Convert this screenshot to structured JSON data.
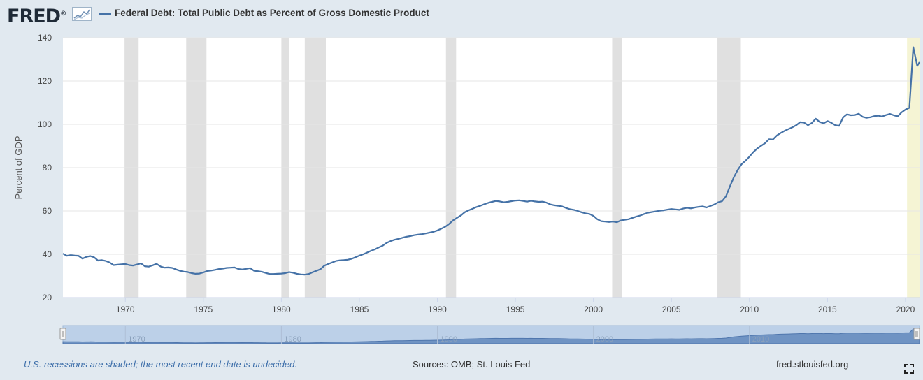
{
  "header": {
    "logo_text": "FRED",
    "logo_mark": "®",
    "graph_icon": "line-graph-icon"
  },
  "chart_data": {
    "type": "line",
    "title": "Federal Debt: Total Public Debt as Percent of Gross Domestic Product",
    "ylabel": "Percent of GDP",
    "xlabel": "",
    "xlim": [
      1966.0,
      2020.9
    ],
    "ylim": [
      20,
      140
    ],
    "yticks": [
      20,
      40,
      60,
      80,
      100,
      120,
      140
    ],
    "xticks": [
      1970,
      1975,
      1980,
      1985,
      1990,
      1995,
      2000,
      2005,
      2010,
      2015,
      2020
    ],
    "grid": true,
    "series": [
      {
        "name": "Federal Debt: Total Public Debt as Percent of Gross Domestic Product",
        "color": "#4572a7",
        "points": [
          [
            1966.0,
            40.3
          ],
          [
            1966.25,
            39.3
          ],
          [
            1966.5,
            39.6
          ],
          [
            1966.75,
            39.4
          ],
          [
            1967.0,
            39.3
          ],
          [
            1967.25,
            38.0
          ],
          [
            1967.5,
            38.8
          ],
          [
            1967.75,
            39.2
          ],
          [
            1968.0,
            38.6
          ],
          [
            1968.25,
            37.1
          ],
          [
            1968.5,
            37.3
          ],
          [
            1968.75,
            36.9
          ],
          [
            1969.0,
            36.2
          ],
          [
            1969.25,
            35.0
          ],
          [
            1969.5,
            35.2
          ],
          [
            1969.75,
            35.4
          ],
          [
            1970.0,
            35.5
          ],
          [
            1970.25,
            35.0
          ],
          [
            1970.5,
            34.8
          ],
          [
            1970.75,
            35.3
          ],
          [
            1971.0,
            35.8
          ],
          [
            1971.25,
            34.5
          ],
          [
            1971.5,
            34.3
          ],
          [
            1971.75,
            34.9
          ],
          [
            1972.0,
            35.6
          ],
          [
            1972.25,
            34.4
          ],
          [
            1972.5,
            33.8
          ],
          [
            1972.75,
            33.9
          ],
          [
            1973.0,
            33.7
          ],
          [
            1973.25,
            33.0
          ],
          [
            1973.5,
            32.4
          ],
          [
            1973.75,
            32.0
          ],
          [
            1974.0,
            31.8
          ],
          [
            1974.25,
            31.3
          ],
          [
            1974.5,
            31.0
          ],
          [
            1974.75,
            31.1
          ],
          [
            1975.0,
            31.6
          ],
          [
            1975.25,
            32.3
          ],
          [
            1975.5,
            32.5
          ],
          [
            1975.75,
            32.8
          ],
          [
            1976.0,
            33.2
          ],
          [
            1976.25,
            33.4
          ],
          [
            1976.5,
            33.7
          ],
          [
            1976.75,
            33.8
          ],
          [
            1977.0,
            33.9
          ],
          [
            1977.25,
            33.2
          ],
          [
            1977.5,
            33.0
          ],
          [
            1977.75,
            33.3
          ],
          [
            1978.0,
            33.6
          ],
          [
            1978.25,
            32.4
          ],
          [
            1978.5,
            32.2
          ],
          [
            1978.75,
            31.9
          ],
          [
            1979.0,
            31.4
          ],
          [
            1979.25,
            30.9
          ],
          [
            1979.5,
            30.9
          ],
          [
            1979.75,
            31.0
          ],
          [
            1980.0,
            31.1
          ],
          [
            1980.25,
            31.3
          ],
          [
            1980.5,
            31.8
          ],
          [
            1980.75,
            31.5
          ],
          [
            1981.0,
            31.0
          ],
          [
            1981.25,
            30.7
          ],
          [
            1981.5,
            30.6
          ],
          [
            1981.75,
            30.9
          ],
          [
            1982.0,
            31.7
          ],
          [
            1982.25,
            32.4
          ],
          [
            1982.5,
            33.1
          ],
          [
            1982.75,
            34.7
          ],
          [
            1983.0,
            35.5
          ],
          [
            1983.25,
            36.2
          ],
          [
            1983.5,
            36.9
          ],
          [
            1983.75,
            37.2
          ],
          [
            1984.0,
            37.3
          ],
          [
            1984.25,
            37.5
          ],
          [
            1984.5,
            37.9
          ],
          [
            1984.75,
            38.6
          ],
          [
            1985.0,
            39.4
          ],
          [
            1985.25,
            40.0
          ],
          [
            1985.5,
            40.8
          ],
          [
            1985.75,
            41.6
          ],
          [
            1986.0,
            42.3
          ],
          [
            1986.25,
            43.2
          ],
          [
            1986.5,
            44.0
          ],
          [
            1986.75,
            45.3
          ],
          [
            1987.0,
            46.1
          ],
          [
            1987.25,
            46.7
          ],
          [
            1987.5,
            47.1
          ],
          [
            1987.75,
            47.6
          ],
          [
            1988.0,
            48.1
          ],
          [
            1988.25,
            48.4
          ],
          [
            1988.5,
            48.8
          ],
          [
            1988.75,
            49.1
          ],
          [
            1989.0,
            49.3
          ],
          [
            1989.25,
            49.6
          ],
          [
            1989.5,
            50.0
          ],
          [
            1989.75,
            50.4
          ],
          [
            1990.0,
            51.0
          ],
          [
            1990.25,
            51.8
          ],
          [
            1990.5,
            52.7
          ],
          [
            1990.75,
            54.0
          ],
          [
            1991.0,
            55.6
          ],
          [
            1991.25,
            56.8
          ],
          [
            1991.5,
            57.9
          ],
          [
            1991.75,
            59.4
          ],
          [
            1992.0,
            60.3
          ],
          [
            1992.25,
            61.0
          ],
          [
            1992.5,
            61.8
          ],
          [
            1992.75,
            62.4
          ],
          [
            1993.0,
            63.1
          ],
          [
            1993.25,
            63.7
          ],
          [
            1993.5,
            64.2
          ],
          [
            1993.75,
            64.6
          ],
          [
            1994.0,
            64.4
          ],
          [
            1994.25,
            64.0
          ],
          [
            1994.5,
            64.2
          ],
          [
            1994.75,
            64.5
          ],
          [
            1995.0,
            64.8
          ],
          [
            1995.25,
            64.9
          ],
          [
            1995.5,
            64.6
          ],
          [
            1995.75,
            64.3
          ],
          [
            1996.0,
            64.7
          ],
          [
            1996.25,
            64.4
          ],
          [
            1996.5,
            64.2
          ],
          [
            1996.75,
            64.3
          ],
          [
            1997.0,
            63.8
          ],
          [
            1997.25,
            63.0
          ],
          [
            1997.5,
            62.6
          ],
          [
            1997.75,
            62.4
          ],
          [
            1998.0,
            62.1
          ],
          [
            1998.25,
            61.4
          ],
          [
            1998.5,
            60.8
          ],
          [
            1998.75,
            60.5
          ],
          [
            1999.0,
            60.0
          ],
          [
            1999.25,
            59.4
          ],
          [
            1999.5,
            58.9
          ],
          [
            1999.75,
            58.6
          ],
          [
            2000.0,
            57.7
          ],
          [
            2000.25,
            56.2
          ],
          [
            2000.5,
            55.3
          ],
          [
            2000.75,
            55.1
          ],
          [
            2001.0,
            54.9
          ],
          [
            2001.25,
            55.1
          ],
          [
            2001.5,
            54.8
          ],
          [
            2001.75,
            55.6
          ],
          [
            2002.0,
            55.9
          ],
          [
            2002.25,
            56.2
          ],
          [
            2002.5,
            56.8
          ],
          [
            2002.75,
            57.4
          ],
          [
            2003.0,
            57.9
          ],
          [
            2003.25,
            58.6
          ],
          [
            2003.5,
            59.2
          ],
          [
            2003.75,
            59.5
          ],
          [
            2004.0,
            59.8
          ],
          [
            2004.25,
            60.1
          ],
          [
            2004.5,
            60.3
          ],
          [
            2004.75,
            60.6
          ],
          [
            2005.0,
            60.9
          ],
          [
            2005.25,
            60.7
          ],
          [
            2005.5,
            60.5
          ],
          [
            2005.75,
            61.1
          ],
          [
            2006.0,
            61.5
          ],
          [
            2006.25,
            61.2
          ],
          [
            2006.5,
            61.6
          ],
          [
            2006.75,
            61.9
          ],
          [
            2007.0,
            62.1
          ],
          [
            2007.25,
            61.6
          ],
          [
            2007.5,
            62.3
          ],
          [
            2007.75,
            63.0
          ],
          [
            2008.0,
            64.0
          ],
          [
            2008.25,
            64.5
          ],
          [
            2008.5,
            66.8
          ],
          [
            2008.75,
            71.4
          ],
          [
            2009.0,
            75.6
          ],
          [
            2009.25,
            79.0
          ],
          [
            2009.5,
            81.6
          ],
          [
            2009.75,
            83.2
          ],
          [
            2010.0,
            85.1
          ],
          [
            2010.25,
            87.2
          ],
          [
            2010.5,
            88.8
          ],
          [
            2010.75,
            90.1
          ],
          [
            2011.0,
            91.3
          ],
          [
            2011.25,
            93.1
          ],
          [
            2011.5,
            93.0
          ],
          [
            2011.75,
            94.8
          ],
          [
            2012.0,
            96.0
          ],
          [
            2012.25,
            97.0
          ],
          [
            2012.5,
            97.8
          ],
          [
            2012.75,
            98.6
          ],
          [
            2013.0,
            99.6
          ],
          [
            2013.25,
            101.0
          ],
          [
            2013.5,
            100.8
          ],
          [
            2013.75,
            99.6
          ],
          [
            2014.0,
            100.6
          ],
          [
            2014.25,
            102.6
          ],
          [
            2014.5,
            101.1
          ],
          [
            2014.75,
            100.5
          ],
          [
            2015.0,
            101.5
          ],
          [
            2015.25,
            100.7
          ],
          [
            2015.5,
            99.6
          ],
          [
            2015.75,
            99.3
          ],
          [
            2016.0,
            103.2
          ],
          [
            2016.25,
            104.6
          ],
          [
            2016.5,
            104.2
          ],
          [
            2016.75,
            104.3
          ],
          [
            2017.0,
            104.9
          ],
          [
            2017.25,
            103.5
          ],
          [
            2017.5,
            103.0
          ],
          [
            2017.75,
            103.3
          ],
          [
            2018.0,
            103.8
          ],
          [
            2018.25,
            104.0
          ],
          [
            2018.5,
            103.6
          ],
          [
            2018.75,
            104.3
          ],
          [
            2019.0,
            104.8
          ],
          [
            2019.25,
            104.2
          ],
          [
            2019.5,
            103.7
          ],
          [
            2019.75,
            105.5
          ],
          [
            2020.0,
            106.8
          ],
          [
            2020.25,
            107.6
          ],
          [
            2020.5,
            135.6
          ],
          [
            2020.75,
            127.0
          ],
          [
            2020.9,
            128.7
          ]
        ]
      }
    ],
    "recessions": [
      [
        1969.95,
        1970.85
      ],
      [
        1973.9,
        1975.2
      ],
      [
        1980.0,
        1980.5
      ],
      [
        1981.5,
        1982.85
      ],
      [
        1990.55,
        1991.2
      ],
      [
        2001.2,
        2001.85
      ],
      [
        2007.95,
        2009.45
      ],
      [
        2020.1,
        2020.9
      ]
    ],
    "range_selector": {
      "tick_labels": [
        "1970",
        "1980",
        "1990",
        "2000",
        "2010"
      ],
      "tick_years": [
        1970,
        1980,
        1990,
        2000,
        2010
      ]
    }
  },
  "footer": {
    "note": "U.S. recessions are shaded; the most recent end date is undecided.",
    "sources": "Sources: OMB; St. Louis Fed",
    "site": "fred.stlouisfed.org",
    "fullscreen_icon": "fullscreen-icon"
  }
}
